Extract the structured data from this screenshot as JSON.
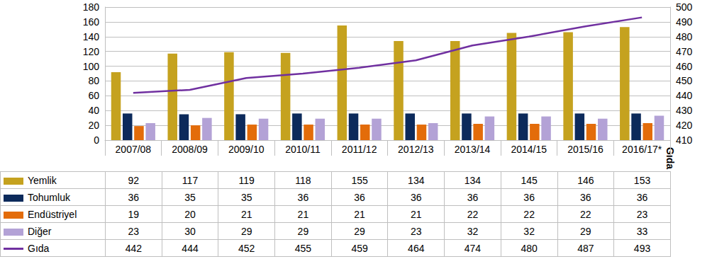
{
  "chart_data": {
    "type": "bar",
    "categories": [
      "2007/08",
      "2008/09",
      "2009/10",
      "2010/11",
      "2011/12",
      "2012/13",
      "2013/14",
      "2014/15",
      "2015/16",
      "2016/17*"
    ],
    "series": [
      {
        "name": "Yemlik",
        "color": "#c5a21f",
        "values": [
          92,
          117,
          119,
          118,
          155,
          134,
          134,
          145,
          146,
          153
        ]
      },
      {
        "name": "Tohumluk",
        "color": "#0c2a5b",
        "values": [
          36,
          35,
          35,
          36,
          36,
          36,
          36,
          36,
          36,
          36
        ]
      },
      {
        "name": "Endüstriyel",
        "color": "#e36c0a",
        "values": [
          19,
          20,
          21,
          21,
          21,
          21,
          22,
          22,
          22,
          23
        ]
      },
      {
        "name": "Diğer",
        "color": "#b3a2d6",
        "values": [
          23,
          30,
          29,
          29,
          29,
          23,
          32,
          32,
          29,
          33
        ]
      },
      {
        "name": "Gıda",
        "color": "#7030a0",
        "type": "line",
        "axis": "y2",
        "values": [
          442,
          444,
          452,
          455,
          459,
          464,
          474,
          480,
          487,
          493
        ]
      }
    ],
    "ylim": [
      0,
      180
    ],
    "yticks": [
      0,
      20,
      40,
      60,
      80,
      100,
      120,
      140,
      160,
      180
    ],
    "y2lim": [
      410,
      500
    ],
    "y2ticks": [
      410,
      420,
      430,
      440,
      450,
      460,
      470,
      480,
      490,
      500
    ],
    "y2label": "Gıda",
    "grid": true
  }
}
